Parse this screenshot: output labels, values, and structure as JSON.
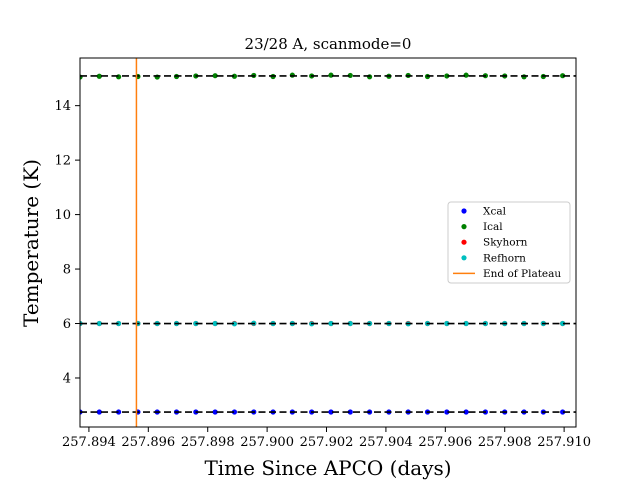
{
  "chart_data": {
    "type": "scatter",
    "title": "23/28 A, scanmode=0",
    "xlabel": "Time Since APCO (days)",
    "ylabel": "Temperature (K)",
    "xlim": [
      257.8937,
      257.9104
    ],
    "ylim": [
      2.2,
      15.75
    ],
    "x_ticks": [
      257.894,
      257.896,
      257.898,
      257.9,
      257.902,
      257.904,
      257.906,
      257.908,
      257.91
    ],
    "x_tick_labels": [
      "257.894",
      "257.896",
      "257.898",
      "257.900",
      "257.902",
      "257.904",
      "257.906",
      "257.908",
      "257.910"
    ],
    "y_ticks": [
      4,
      6,
      8,
      10,
      12,
      14
    ],
    "y_tick_labels": [
      "4",
      "6",
      "8",
      "10",
      "12",
      "14"
    ],
    "grid": false,
    "legend_placement": "center-right",
    "x_start": 257.8937,
    "x_step": 0.00065,
    "n_points": 27,
    "series": [
      {
        "name": "Xcal",
        "color": "#0000ff",
        "values": [
          2.75,
          2.75,
          2.75,
          2.75,
          2.75,
          2.75,
          2.75,
          2.75,
          2.75,
          2.75,
          2.75,
          2.75,
          2.75,
          2.75,
          2.75,
          2.75,
          2.75,
          2.75,
          2.75,
          2.75,
          2.75,
          2.75,
          2.75,
          2.75,
          2.75,
          2.75,
          2.75
        ]
      },
      {
        "name": "Ical",
        "color": "#008000",
        "values": [
          15.05,
          15.08,
          15.06,
          15.07,
          15.05,
          15.07,
          15.09,
          15.1,
          15.08,
          15.11,
          15.07,
          15.12,
          15.09,
          15.12,
          15.11,
          15.06,
          15.08,
          15.11,
          15.07,
          15.09,
          15.12,
          15.1,
          15.09,
          15.06,
          15.07,
          15.1,
          15.11
        ]
      },
      {
        "name": "Skyhorn",
        "color": "#ff0000",
        "values": [
          6.0,
          6.0,
          6.0,
          6.0,
          6.0,
          6.0,
          6.0,
          6.0,
          6.0,
          6.0,
          6.0,
          6.0,
          6.0,
          6.0,
          6.0,
          6.0,
          6.0,
          6.0,
          6.0,
          6.0,
          6.0,
          6.0,
          6.0,
          6.0,
          6.0,
          6.0,
          6.0
        ]
      },
      {
        "name": "Refhorn",
        "color": "#00bfbf",
        "values": [
          6.0,
          6.0,
          6.0,
          6.0,
          6.0,
          6.0,
          6.0,
          6.0,
          5.99,
          6.01,
          6.0,
          6.0,
          5.99,
          6.0,
          6.0,
          6.0,
          6.0,
          5.99,
          6.0,
          6.0,
          6.0,
          6.0,
          6.0,
          6.0,
          6.0,
          6.0,
          6.0
        ]
      }
    ],
    "reference_lines": [
      2.75,
      6.0,
      15.09
    ],
    "end_of_plateau": {
      "name": "End of Plateau",
      "x": 257.8956,
      "color": "#ff7f0e"
    }
  }
}
